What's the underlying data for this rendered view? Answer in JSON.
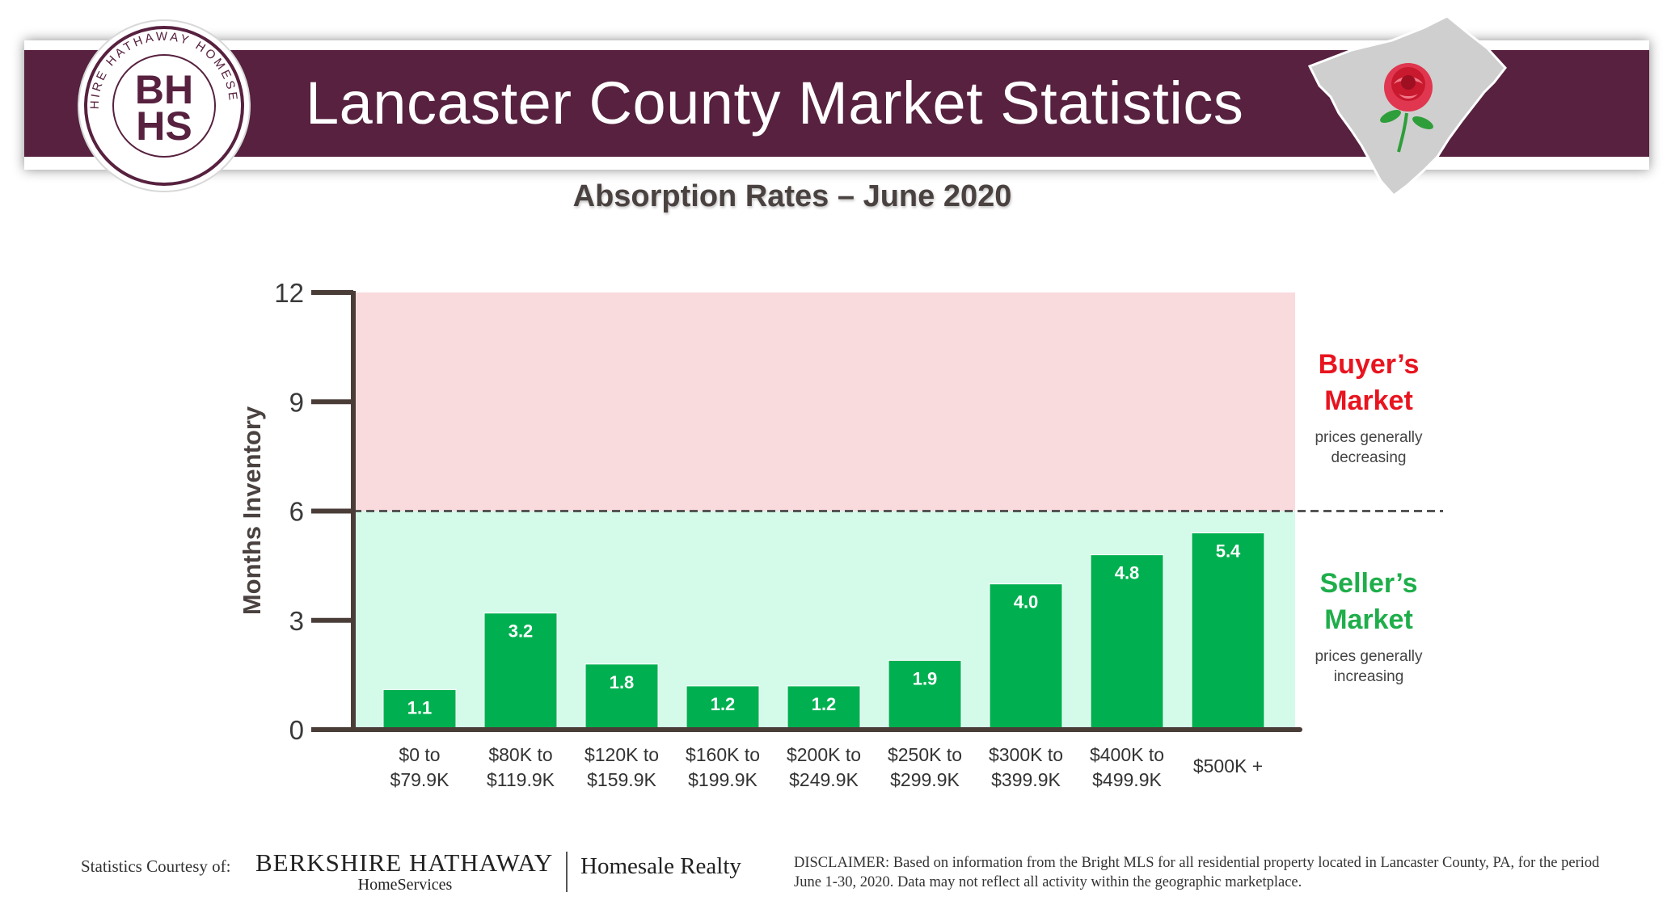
{
  "header": {
    "title": "Lancaster County Market Statistics",
    "logo": {
      "ring_text": "BERKSHIRE HATHAWAY HOMESERVICES",
      "monogram_top": "BH",
      "monogram_bottom": "HS"
    },
    "map_icon": "county-map-rose-icon",
    "colors": {
      "banner": "#57213f",
      "map": "#cfcfcf",
      "rose": "#e0364f",
      "leaf": "#2e9e3a"
    }
  },
  "chart_data": {
    "type": "bar",
    "title": "Absorption Rates – June 2020",
    "ylabel": "Months Inventory",
    "xlabel": "",
    "ylim": [
      0,
      12
    ],
    "yticks": [
      "0",
      "3",
      "6",
      "9",
      "12"
    ],
    "categories": [
      [
        "$0 to",
        "$79.9K"
      ],
      [
        "$80K to",
        "$119.9K"
      ],
      [
        "$120K to",
        "$159.9K"
      ],
      [
        "$160K to",
        "$199.9K"
      ],
      [
        "$200K to",
        "$249.9K"
      ],
      [
        "$250K to",
        "$299.9K"
      ],
      [
        "$300K to",
        "$399.9K"
      ],
      [
        "$400K to",
        "$499.9K"
      ],
      [
        "$500K +"
      ]
    ],
    "values": [
      1.1,
      3.2,
      1.8,
      1.2,
      1.2,
      1.9,
      4.0,
      4.8,
      5.4
    ],
    "value_labels": [
      "1.1",
      "3.2",
      "1.8",
      "1.2",
      "1.2",
      "1.9",
      "4.0",
      "4.8",
      "5.4"
    ],
    "threshold": 6,
    "zones": {
      "buyer": {
        "range": [
          6,
          12
        ],
        "title": [
          "Buyer’s",
          "Market"
        ],
        "subtitle": [
          "prices generally",
          "decreasing"
        ],
        "fill": "#f9dadd",
        "title_color": "#e8141f"
      },
      "seller": {
        "range": [
          0,
          6
        ],
        "title": [
          "Seller’s",
          "Market"
        ],
        "subtitle": [
          "prices generally",
          "increasing"
        ],
        "fill": "#d4faea",
        "title_color": "#1fae4a"
      }
    },
    "colors": {
      "bar": "#00b050",
      "axis": "#4a3d38",
      "value_label": "#ffffff"
    },
    "grid": false,
    "legend": "none"
  },
  "footer": {
    "courtesy": "Statistics Courtesy of:",
    "brand": "BERKSHIRE HATHAWAY",
    "brand_sub": "HomeServices",
    "partner": "Homesale Realty",
    "disclaimer": "DISCLAIMER: Based on information from the Bright MLS for all residential property located in Lancaster County, PA, for the period June 1-30, 2020. Data may not reflect all activity within the geographic marketplace."
  }
}
